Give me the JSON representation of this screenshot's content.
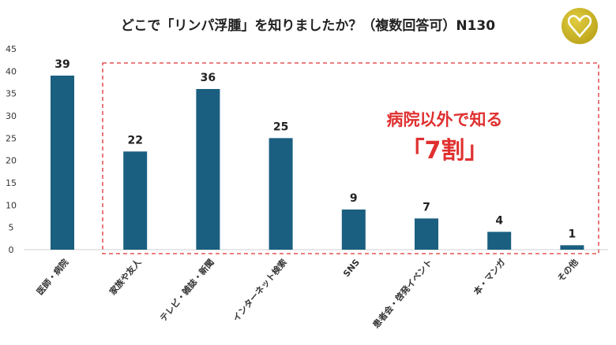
{
  "chart_data": {
    "type": "bar",
    "title": "どこで「リンパ浮腫」を知りましたか？（複数回答可）N130",
    "categories": [
      "医師・病院",
      "家族や友人",
      "テレビ・雑誌・新聞",
      "インターネット検索",
      "SNS",
      "患者会・啓発イベント",
      "本・マンガ",
      "その他"
    ],
    "values": [
      39,
      22,
      36,
      25,
      9,
      7,
      4,
      1
    ],
    "ylim": [
      0,
      45
    ],
    "yticks": [
      0,
      5,
      10,
      15,
      20,
      25,
      30,
      35,
      40,
      45
    ],
    "grid": false,
    "bar_color": "#1a5f80",
    "annotation": {
      "line1": "病院以外で知る",
      "line2": "「7割」",
      "color": "#e03030"
    }
  }
}
